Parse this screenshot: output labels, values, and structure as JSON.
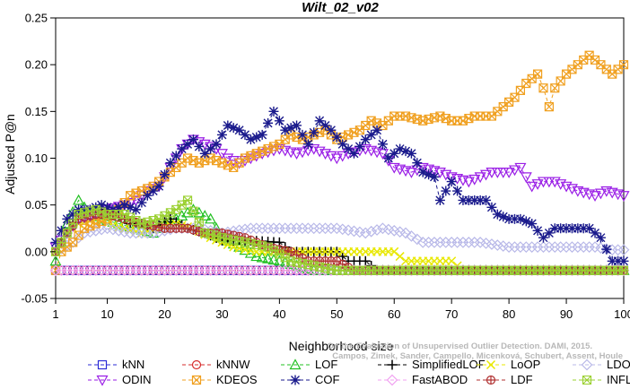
{
  "chart_data": {
    "type": "line",
    "title": "Wilt_02_v02",
    "xlabel": "Neighborhood size",
    "ylabel": "Adjusted P@n",
    "xlim": [
      1,
      100
    ],
    "ylim": [
      -0.05,
      0.25
    ],
    "xticks": [
      "1",
      "10",
      "20",
      "30",
      "40",
      "50",
      "60",
      "70",
      "80",
      "90",
      "100"
    ],
    "yticks": [
      "-0.05",
      "0.00",
      "0.05",
      "0.10",
      "0.15",
      "0.20",
      "0.25"
    ],
    "grid": false,
    "legend_position": "bottom",
    "watermark": [
      "Campos, Zimek, Sander, Campello, Micenková, Schubert, Assent, Houle",
      "On the Evaluation of Unsupervised Outlier Detection. DAMI, 2015."
    ],
    "series": [
      {
        "name": "kNN",
        "color": "#2b2bd6",
        "marker": "square",
        "dash": "4,3",
        "points": [
          [
            1,
            -0.02
          ],
          [
            100,
            -0.02
          ]
        ]
      },
      {
        "name": "kNNW",
        "color": "#d62b2b",
        "marker": "circle",
        "dash": "4,3",
        "points": [
          [
            1,
            -0.02
          ],
          [
            100,
            -0.02
          ]
        ]
      },
      {
        "name": "LOF",
        "color": "#22c022",
        "marker": "triangle",
        "dash": "4,3",
        "points": [
          [
            1,
            -0.01
          ],
          [
            3,
            0.03
          ],
          [
            5,
            0.055
          ],
          [
            7,
            0.04
          ],
          [
            9,
            0.035
          ],
          [
            12,
            0.03
          ],
          [
            15,
            0.025
          ],
          [
            18,
            0.02
          ],
          [
            20,
            0.03
          ],
          [
            22,
            0.035
          ],
          [
            25,
            0.045
          ],
          [
            28,
            0.035
          ],
          [
            30,
            0.015
          ],
          [
            33,
            0.005
          ],
          [
            36,
            -0.005
          ],
          [
            40,
            -0.01
          ],
          [
            43,
            -0.015
          ],
          [
            46,
            -0.02
          ],
          [
            50,
            -0.02
          ],
          [
            100,
            -0.02
          ]
        ]
      },
      {
        "name": "SimplifiedLOF",
        "color": "#000000",
        "marker": "plus",
        "dash": "4,3",
        "points": [
          [
            1,
            0.0
          ],
          [
            3,
            0.02
          ],
          [
            5,
            0.04
          ],
          [
            8,
            0.045
          ],
          [
            10,
            0.045
          ],
          [
            12,
            0.04
          ],
          [
            14,
            0.03
          ],
          [
            16,
            0.03
          ],
          [
            18,
            0.025
          ],
          [
            21,
            0.035
          ],
          [
            24,
            0.025
          ],
          [
            27,
            0.02
          ],
          [
            30,
            0.012
          ],
          [
            35,
            0.012
          ],
          [
            40,
            0.01
          ],
          [
            42,
            0.0
          ],
          [
            45,
            0.0
          ],
          [
            50,
            0.0
          ],
          [
            52,
            -0.01
          ],
          [
            55,
            -0.01
          ],
          [
            57,
            -0.02
          ],
          [
            100,
            -0.02
          ]
        ]
      },
      {
        "name": "LoOP",
        "color": "#e8e800",
        "marker": "x",
        "dash": "4,3",
        "points": [
          [
            1,
            0.0
          ],
          [
            3,
            0.02
          ],
          [
            5,
            0.03
          ],
          [
            8,
            0.035
          ],
          [
            10,
            0.03
          ],
          [
            13,
            0.025
          ],
          [
            16,
            0.02
          ],
          [
            19,
            0.025
          ],
          [
            22,
            0.03
          ],
          [
            25,
            0.025
          ],
          [
            28,
            0.015
          ],
          [
            32,
            0.005
          ],
          [
            36,
            0.0
          ],
          [
            42,
            0.0
          ],
          [
            50,
            0.0
          ],
          [
            55,
            0.0
          ],
          [
            60,
            0.0
          ],
          [
            62,
            -0.01
          ],
          [
            70,
            -0.01
          ],
          [
            72,
            -0.02
          ],
          [
            100,
            -0.02
          ]
        ]
      },
      {
        "name": "LDOF",
        "color": "#b8b8e8",
        "marker": "diamond",
        "dash": "4,3",
        "points": [
          [
            1,
            0.0
          ],
          [
            4,
            0.01
          ],
          [
            6,
            0.02
          ],
          [
            10,
            0.025
          ],
          [
            14,
            0.02
          ],
          [
            18,
            0.02
          ],
          [
            22,
            0.025
          ],
          [
            26,
            0.025
          ],
          [
            30,
            0.02
          ],
          [
            35,
            0.025
          ],
          [
            40,
            0.025
          ],
          [
            45,
            0.025
          ],
          [
            50,
            0.025
          ],
          [
            55,
            0.02
          ],
          [
            58,
            0.025
          ],
          [
            62,
            0.02
          ],
          [
            65,
            0.01
          ],
          [
            70,
            0.01
          ],
          [
            75,
            0.01
          ],
          [
            80,
            0.005
          ],
          [
            85,
            0.005
          ],
          [
            90,
            0.005
          ],
          [
            95,
            0.005
          ],
          [
            98,
            0.002
          ],
          [
            100,
            0.002
          ]
        ]
      },
      {
        "name": "ODIN",
        "color": "#9a1ee6",
        "marker": "triangle-down",
        "dash": "4,3",
        "points": [
          [
            1,
            0.005
          ],
          [
            3,
            0.02
          ],
          [
            5,
            0.035
          ],
          [
            8,
            0.04
          ],
          [
            10,
            0.045
          ],
          [
            13,
            0.05
          ],
          [
            15,
            0.055
          ],
          [
            17,
            0.065
          ],
          [
            19,
            0.07
          ],
          [
            21,
            0.09
          ],
          [
            23,
            0.11
          ],
          [
            25,
            0.12
          ],
          [
            27,
            0.115
          ],
          [
            29,
            0.11
          ],
          [
            31,
            0.1
          ],
          [
            33,
            0.095
          ],
          [
            35,
            0.1
          ],
          [
            37,
            0.105
          ],
          [
            40,
            0.11
          ],
          [
            43,
            0.105
          ],
          [
            46,
            0.11
          ],
          [
            48,
            0.105
          ],
          [
            50,
            0.1
          ],
          [
            52,
            0.105
          ],
          [
            55,
            0.11
          ],
          [
            58,
            0.105
          ],
          [
            60,
            0.09
          ],
          [
            63,
            0.085
          ],
          [
            65,
            0.09
          ],
          [
            68,
            0.085
          ],
          [
            70,
            0.08
          ],
          [
            73,
            0.075
          ],
          [
            75,
            0.08
          ],
          [
            77,
            0.085
          ],
          [
            80,
            0.085
          ],
          [
            82,
            0.09
          ],
          [
            84,
            0.07
          ],
          [
            86,
            0.075
          ],
          [
            88,
            0.075
          ],
          [
            90,
            0.07
          ],
          [
            92,
            0.065
          ],
          [
            95,
            0.06
          ],
          [
            97,
            0.065
          ],
          [
            100,
            0.06
          ]
        ]
      },
      {
        "name": "KDEOS",
        "color": "#f0a020",
        "marker": "square-x",
        "dash": "4,3",
        "points": [
          [
            1,
            -0.02
          ],
          [
            2,
            0.0
          ],
          [
            4,
            0.01
          ],
          [
            6,
            0.025
          ],
          [
            8,
            0.03
          ],
          [
            10,
            0.035
          ],
          [
            12,
            0.045
          ],
          [
            14,
            0.06
          ],
          [
            16,
            0.065
          ],
          [
            18,
            0.07
          ],
          [
            20,
            0.08
          ],
          [
            22,
            0.09
          ],
          [
            24,
            0.1
          ],
          [
            26,
            0.095
          ],
          [
            28,
            0.1
          ],
          [
            30,
            0.095
          ],
          [
            32,
            0.09
          ],
          [
            34,
            0.1
          ],
          [
            36,
            0.105
          ],
          [
            38,
            0.11
          ],
          [
            40,
            0.115
          ],
          [
            42,
            0.125
          ],
          [
            44,
            0.12
          ],
          [
            46,
            0.125
          ],
          [
            48,
            0.13
          ],
          [
            50,
            0.12
          ],
          [
            52,
            0.125
          ],
          [
            54,
            0.13
          ],
          [
            56,
            0.14
          ],
          [
            58,
            0.135
          ],
          [
            60,
            0.145
          ],
          [
            62,
            0.145
          ],
          [
            65,
            0.14
          ],
          [
            68,
            0.145
          ],
          [
            70,
            0.14
          ],
          [
            72,
            0.14
          ],
          [
            74,
            0.145
          ],
          [
            77,
            0.145
          ],
          [
            79,
            0.155
          ],
          [
            81,
            0.165
          ],
          [
            83,
            0.18
          ],
          [
            85,
            0.19
          ],
          [
            86,
            0.175
          ],
          [
            87,
            0.155
          ],
          [
            88,
            0.175
          ],
          [
            90,
            0.19
          ],
          [
            92,
            0.2
          ],
          [
            94,
            0.21
          ],
          [
            96,
            0.2
          ],
          [
            98,
            0.19
          ],
          [
            100,
            0.2
          ]
        ]
      },
      {
        "name": "COF",
        "color": "#1a1a8c",
        "marker": "asterisk",
        "dash": "4,3",
        "points": [
          [
            1,
            0.01
          ],
          [
            3,
            0.035
          ],
          [
            5,
            0.045
          ],
          [
            7,
            0.045
          ],
          [
            9,
            0.05
          ],
          [
            11,
            0.045
          ],
          [
            13,
            0.05
          ],
          [
            15,
            0.045
          ],
          [
            17,
            0.06
          ],
          [
            19,
            0.07
          ],
          [
            21,
            0.095
          ],
          [
            23,
            0.11
          ],
          [
            25,
            0.12
          ],
          [
            27,
            0.105
          ],
          [
            29,
            0.115
          ],
          [
            31,
            0.135
          ],
          [
            33,
            0.13
          ],
          [
            35,
            0.12
          ],
          [
            37,
            0.125
          ],
          [
            39,
            0.15
          ],
          [
            41,
            0.13
          ],
          [
            43,
            0.135
          ],
          [
            45,
            0.115
          ],
          [
            47,
            0.14
          ],
          [
            49,
            0.13
          ],
          [
            51,
            0.115
          ],
          [
            53,
            0.105
          ],
          [
            55,
            0.12
          ],
          [
            57,
            0.13
          ],
          [
            59,
            0.1
          ],
          [
            61,
            0.11
          ],
          [
            63,
            0.105
          ],
          [
            65,
            0.085
          ],
          [
            67,
            0.08
          ],
          [
            68,
            0.055
          ],
          [
            70,
            0.075
          ],
          [
            72,
            0.055
          ],
          [
            74,
            0.055
          ],
          [
            76,
            0.055
          ],
          [
            78,
            0.04
          ],
          [
            80,
            0.035
          ],
          [
            82,
            0.035
          ],
          [
            84,
            0.03
          ],
          [
            86,
            0.015
          ],
          [
            88,
            0.025
          ],
          [
            90,
            0.025
          ],
          [
            92,
            0.025
          ],
          [
            94,
            0.025
          ],
          [
            96,
            0.015
          ],
          [
            98,
            -0.01
          ],
          [
            100,
            -0.01
          ]
        ]
      },
      {
        "name": "FastABOD",
        "color": "#f0a0f0",
        "marker": "diamond",
        "dash": "4,3",
        "points": [
          [
            1,
            -0.02
          ],
          [
            100,
            -0.02
          ]
        ]
      },
      {
        "name": "LDF",
        "color": "#b03030",
        "marker": "circle-plus",
        "dash": "4,3",
        "points": [
          [
            1,
            0.0
          ],
          [
            3,
            0.02
          ],
          [
            5,
            0.035
          ],
          [
            8,
            0.04
          ],
          [
            10,
            0.04
          ],
          [
            13,
            0.035
          ],
          [
            16,
            0.03
          ],
          [
            20,
            0.025
          ],
          [
            24,
            0.025
          ],
          [
            27,
            0.02
          ],
          [
            30,
            0.02
          ],
          [
            34,
            0.015
          ],
          [
            38,
            0.005
          ],
          [
            42,
            0.0
          ],
          [
            45,
            -0.01
          ],
          [
            50,
            -0.01
          ],
          [
            53,
            -0.02
          ],
          [
            100,
            -0.02
          ]
        ]
      },
      {
        "name": "INFLO",
        "color": "#9ad030",
        "marker": "star",
        "dash": "4,3",
        "points": [
          [
            1,
            0.0
          ],
          [
            3,
            0.02
          ],
          [
            5,
            0.04
          ],
          [
            8,
            0.045
          ],
          [
            10,
            0.04
          ],
          [
            13,
            0.04
          ],
          [
            16,
            0.03
          ],
          [
            19,
            0.035
          ],
          [
            22,
            0.045
          ],
          [
            24,
            0.055
          ],
          [
            27,
            0.02
          ],
          [
            30,
            0.015
          ],
          [
            34,
            0.01
          ],
          [
            38,
            0.005
          ],
          [
            42,
            -0.01
          ],
          [
            46,
            -0.015
          ],
          [
            50,
            -0.02
          ],
          [
            100,
            -0.02
          ]
        ]
      }
    ]
  }
}
